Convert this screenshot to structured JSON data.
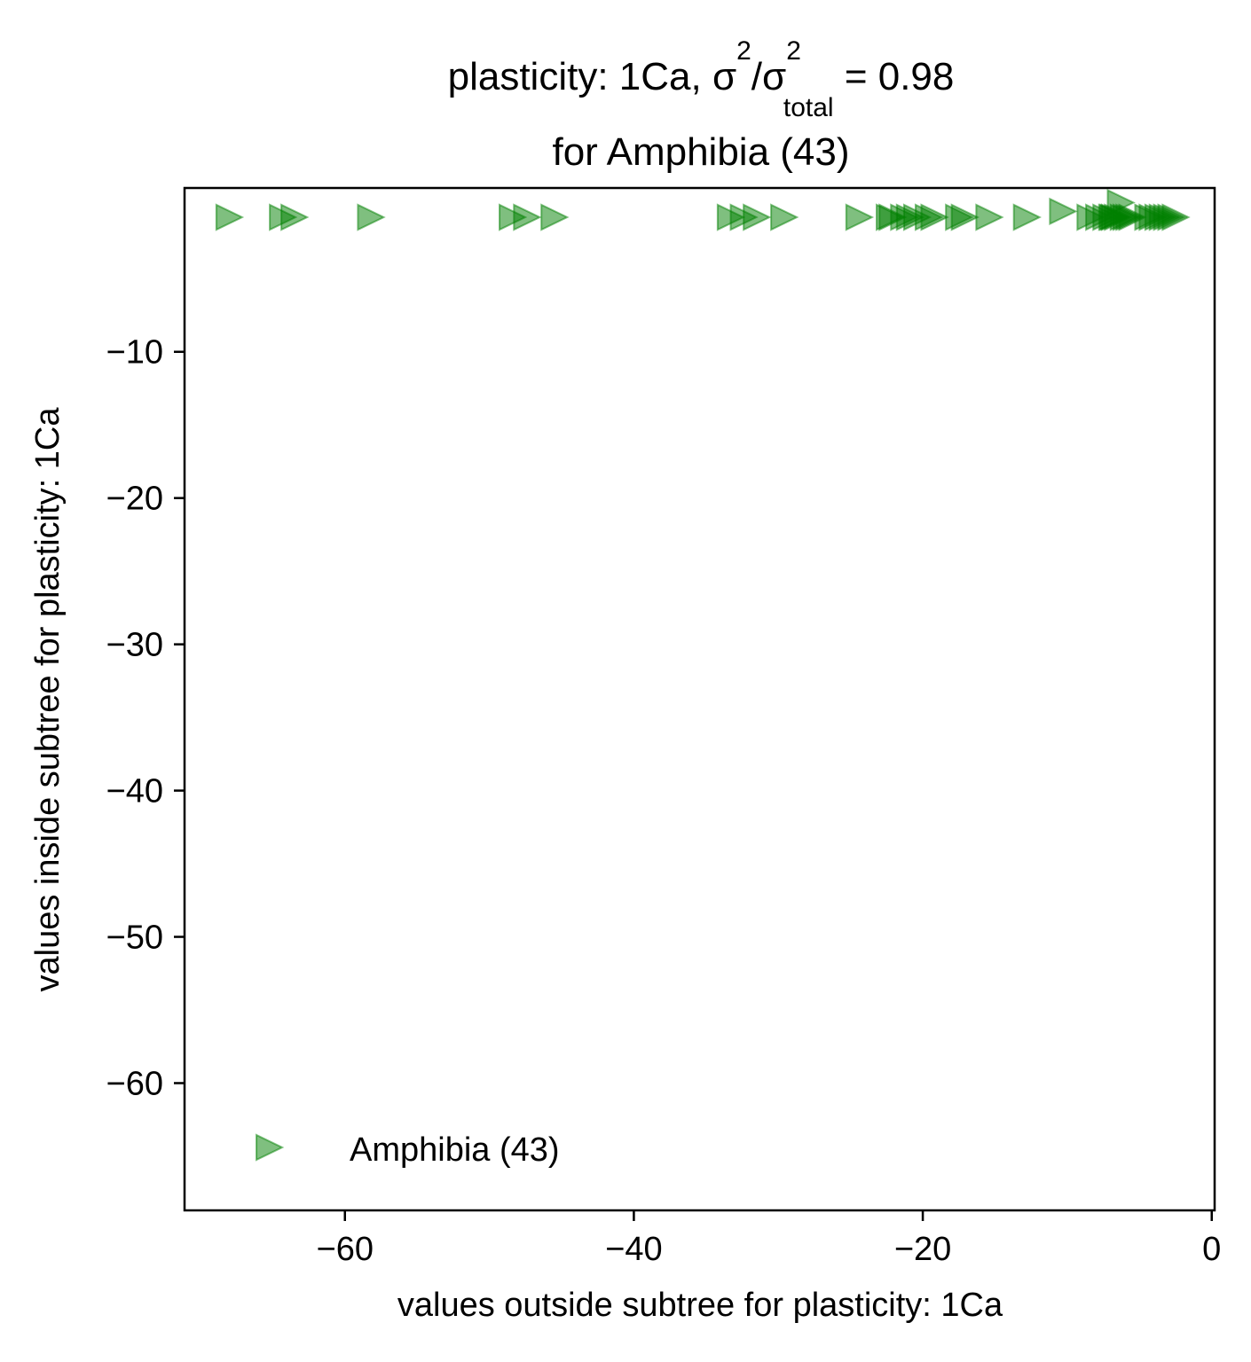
{
  "chart_data": {
    "type": "scatter",
    "title": {
      "prefix": "plasticity: 1Ca, σ",
      "sup1": "2",
      "mid": "/σ",
      "sup2": "2",
      "sub": "total",
      "suffix": " =  0.98",
      "line2": "for Amphibia (43)"
    },
    "xlabel": "values outside subtree for plasticity: 1Ca",
    "ylabel": "values inside subtree for plasticity: 1Ca",
    "xlim": [
      -71.1,
      0.2
    ],
    "ylim": [
      -68.7,
      1.2
    ],
    "x_ticks": [
      {
        "value": -60,
        "label": "−60"
      },
      {
        "value": -40,
        "label": "−40"
      },
      {
        "value": -20,
        "label": "−20"
      },
      {
        "value": 0,
        "label": "0"
      }
    ],
    "y_ticks": [
      {
        "value": -10,
        "label": "−10"
      },
      {
        "value": -20,
        "label": "−20"
      },
      {
        "value": -30,
        "label": "−30"
      },
      {
        "value": -40,
        "label": "−40"
      },
      {
        "value": -50,
        "label": "−50"
      },
      {
        "value": -60,
        "label": "−60"
      }
    ],
    "grid": false,
    "legend_position": "lower-left",
    "series": [
      {
        "name": "Amphibia (43)",
        "marker": "triangle-right",
        "color": "#008000",
        "alpha": 0.5,
        "points": [
          [
            -68.1,
            -0.8
          ],
          [
            -64.4,
            -0.8
          ],
          [
            -63.6,
            -0.8
          ],
          [
            -58.3,
            -0.8
          ],
          [
            -48.5,
            -0.8
          ],
          [
            -47.5,
            -0.8
          ],
          [
            -45.6,
            -0.8
          ],
          [
            -33.4,
            -0.8
          ],
          [
            -32.5,
            -0.8
          ],
          [
            -31.6,
            -0.8
          ],
          [
            -29.7,
            -0.8
          ],
          [
            -24.5,
            -0.8
          ],
          [
            -22.4,
            -0.8
          ],
          [
            -22.2,
            -0.8
          ],
          [
            -21.4,
            -0.8
          ],
          [
            -21.0,
            -0.8
          ],
          [
            -20.5,
            -0.8
          ],
          [
            -19.7,
            -0.8
          ],
          [
            -19.3,
            -0.8
          ],
          [
            -17.6,
            -0.8
          ],
          [
            -17.2,
            -0.8
          ],
          [
            -15.5,
            -0.8
          ],
          [
            -12.9,
            -0.8
          ],
          [
            -10.4,
            -0.4
          ],
          [
            -8.5,
            -0.8
          ],
          [
            -7.9,
            -0.8
          ],
          [
            -7.4,
            -0.8
          ],
          [
            -7.0,
            -0.8
          ],
          [
            -6.8,
            -0.8
          ],
          [
            -6.6,
            -0.8
          ],
          [
            -6.4,
            0.2
          ],
          [
            -6.2,
            -0.8
          ],
          [
            -6.0,
            -0.8
          ],
          [
            -5.8,
            -0.8
          ],
          [
            -5.6,
            -0.8
          ],
          [
            -4.5,
            -0.8
          ],
          [
            -4.2,
            -0.8
          ],
          [
            -3.8,
            -0.8
          ],
          [
            -3.5,
            -0.8
          ],
          [
            -3.2,
            -0.8
          ],
          [
            -2.9,
            -0.8
          ],
          [
            -2.6,
            -0.8
          ],
          [
            -6.9,
            -0.8
          ]
        ]
      }
    ]
  }
}
